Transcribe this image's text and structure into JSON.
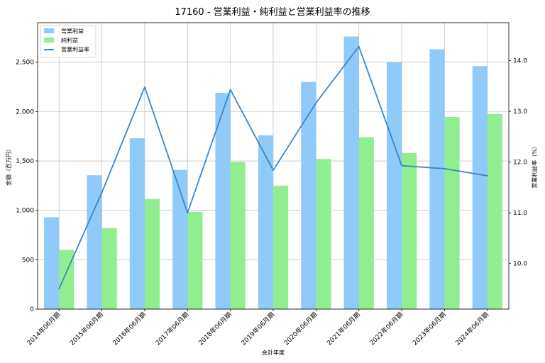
{
  "chart_data": {
    "type": "bar",
    "title": "17160 - 営業利益・純利益と営業利益率の推移",
    "xlabel": "会計年度",
    "ylabel": "金額（百万円）",
    "y2label": "営業利益率（%）",
    "categories": [
      "2014年06月期",
      "2015年06月期",
      "2016年06月期",
      "2017年06月期",
      "2018年06月期",
      "2019年06月期",
      "2020年06月期",
      "2021年06月期",
      "2022年06月期",
      "2023年06月期",
      "2024年06月期"
    ],
    "series": [
      {
        "name": "営業利益",
        "type": "bar",
        "axis": "left",
        "color": "#90caf9",
        "values": [
          930,
          1355,
          1730,
          1410,
          2190,
          1760,
          2300,
          2760,
          2500,
          2630,
          2460
        ]
      },
      {
        "name": "純利益",
        "type": "bar",
        "axis": "left",
        "color": "#90ee90",
        "values": [
          600,
          820,
          1115,
          985,
          1490,
          1250,
          1520,
          1740,
          1580,
          1945,
          1975
        ]
      },
      {
        "name": "営業利益率",
        "type": "line",
        "axis": "right",
        "color": "#3a87c8",
        "values": [
          9.5,
          11.4,
          13.48,
          11.0,
          13.43,
          11.84,
          13.17,
          14.28,
          11.93,
          11.87,
          11.73
        ]
      }
    ],
    "ylim": [
      0,
      2900
    ],
    "yticks": [
      0,
      500,
      1000,
      1500,
      2000,
      2500
    ],
    "ytick_labels": [
      "0",
      "500",
      "1,000",
      "1,500",
      "2,000",
      "2,500"
    ],
    "y2lim": [
      9.1,
      14.75
    ],
    "y2ticks": [
      10,
      11,
      12,
      13,
      14
    ],
    "y2tick_labels": [
      "10.0",
      "11.0",
      "12.0",
      "13.0",
      "14.0"
    ],
    "grid": true,
    "legend_position": "top-left"
  }
}
